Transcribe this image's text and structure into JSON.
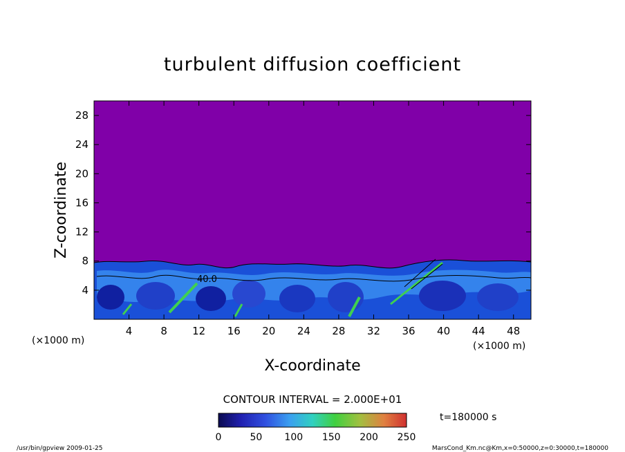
{
  "chart_data": {
    "type": "heatmap",
    "title": "turbulent diffusion coefficient",
    "xlabel": "X-coordinate",
    "ylabel": "Z-coordinate",
    "x_unit": "(×1000 m)",
    "y_unit": "(×1000 m)",
    "xlim": [
      0,
      50
    ],
    "ylim": [
      0,
      30
    ],
    "x_ticks": [
      4,
      8,
      12,
      16,
      20,
      24,
      28,
      32,
      36,
      40,
      44,
      48
    ],
    "y_ticks": [
      4,
      8,
      12,
      16,
      20,
      24,
      28
    ],
    "contour_label": "40.0",
    "contour_interval_text": "CONTOUR INTERVAL = 2.000E+01",
    "time_text": "t=180000  s",
    "colorbar": {
      "min": 0,
      "max": 250,
      "ticks": [
        0,
        50,
        100,
        150,
        200,
        250
      ]
    },
    "background_value_above_8km": 0,
    "grid": false
  },
  "footer": {
    "left": "/usr/bin/gpview   2009-01-25",
    "right": "MarsCond_Km.nc@Km,x=0:50000,z=0:30000,t=180000"
  },
  "colors": {
    "background_field": "#8000A8",
    "low": "#1030C0",
    "mid": "#3A8CF0",
    "high_green": "#40D050",
    "max_red": "#C03030"
  }
}
